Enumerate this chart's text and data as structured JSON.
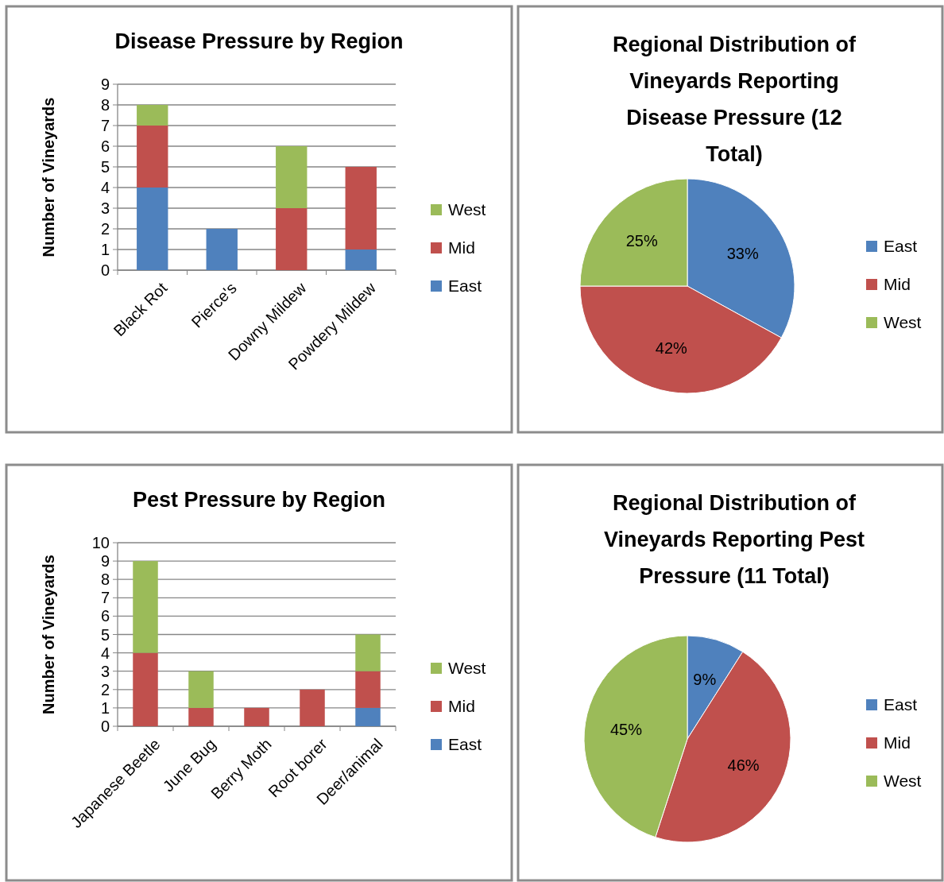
{
  "chart_data": [
    {
      "type": "bar",
      "title": "Disease Pressure by Region",
      "ylabel": "Number of Vineyards",
      "categories": [
        "Black Rot",
        "Pierce's",
        "Downy Mildew",
        "Powdery Mildew"
      ],
      "stacked": true,
      "ylim": [
        0,
        9
      ],
      "yticks": [
        0,
        1,
        2,
        3,
        4,
        5,
        6,
        7,
        8,
        9
      ],
      "grid": "y",
      "legend": "right",
      "series": [
        {
          "name": "East",
          "color": "#4f81bd",
          "values": [
            4,
            2,
            0,
            1
          ]
        },
        {
          "name": "Mid",
          "color": "#c0504d",
          "values": [
            3,
            0,
            3,
            4
          ]
        },
        {
          "name": "West",
          "color": "#9bbb59",
          "values": [
            1,
            0,
            3,
            0
          ]
        }
      ]
    },
    {
      "type": "pie",
      "title": "Regional Distribution of Vineyards Reporting Disease Pressure (12 Total)",
      "categories": [
        "East",
        "Mid",
        "West"
      ],
      "values": [
        33,
        42,
        25
      ],
      "colors": [
        "#4f81bd",
        "#c0504d",
        "#9bbb59"
      ],
      "value_labels": [
        "33%",
        "42%",
        "25%"
      ],
      "legend": "right"
    },
    {
      "type": "bar",
      "title": "Pest Pressure by Region",
      "ylabel": "Number of Vineyards",
      "categories": [
        "Japanese Beetle",
        "June Bug",
        "Berry Moth",
        "Root borer",
        "Deer/animal"
      ],
      "stacked": true,
      "ylim": [
        0,
        10
      ],
      "yticks": [
        0,
        1,
        2,
        3,
        4,
        5,
        6,
        7,
        8,
        9,
        10
      ],
      "grid": "y",
      "legend": "right",
      "series": [
        {
          "name": "East",
          "color": "#4f81bd",
          "values": [
            0,
            0,
            0,
            0,
            1
          ]
        },
        {
          "name": "Mid",
          "color": "#c0504d",
          "values": [
            4,
            1,
            1,
            2,
            2
          ]
        },
        {
          "name": "West",
          "color": "#9bbb59",
          "values": [
            5,
            2,
            0,
            0,
            2
          ]
        }
      ]
    },
    {
      "type": "pie",
      "title": "Regional Distribution of Vineyards Reporting Pest Pressure (11 Total)",
      "categories": [
        "East",
        "Mid",
        "West"
      ],
      "values": [
        9,
        46,
        45
      ],
      "colors": [
        "#4f81bd",
        "#c0504d",
        "#9bbb59"
      ],
      "value_labels": [
        "9%",
        "46%",
        "45%"
      ],
      "legend": "right"
    }
  ]
}
